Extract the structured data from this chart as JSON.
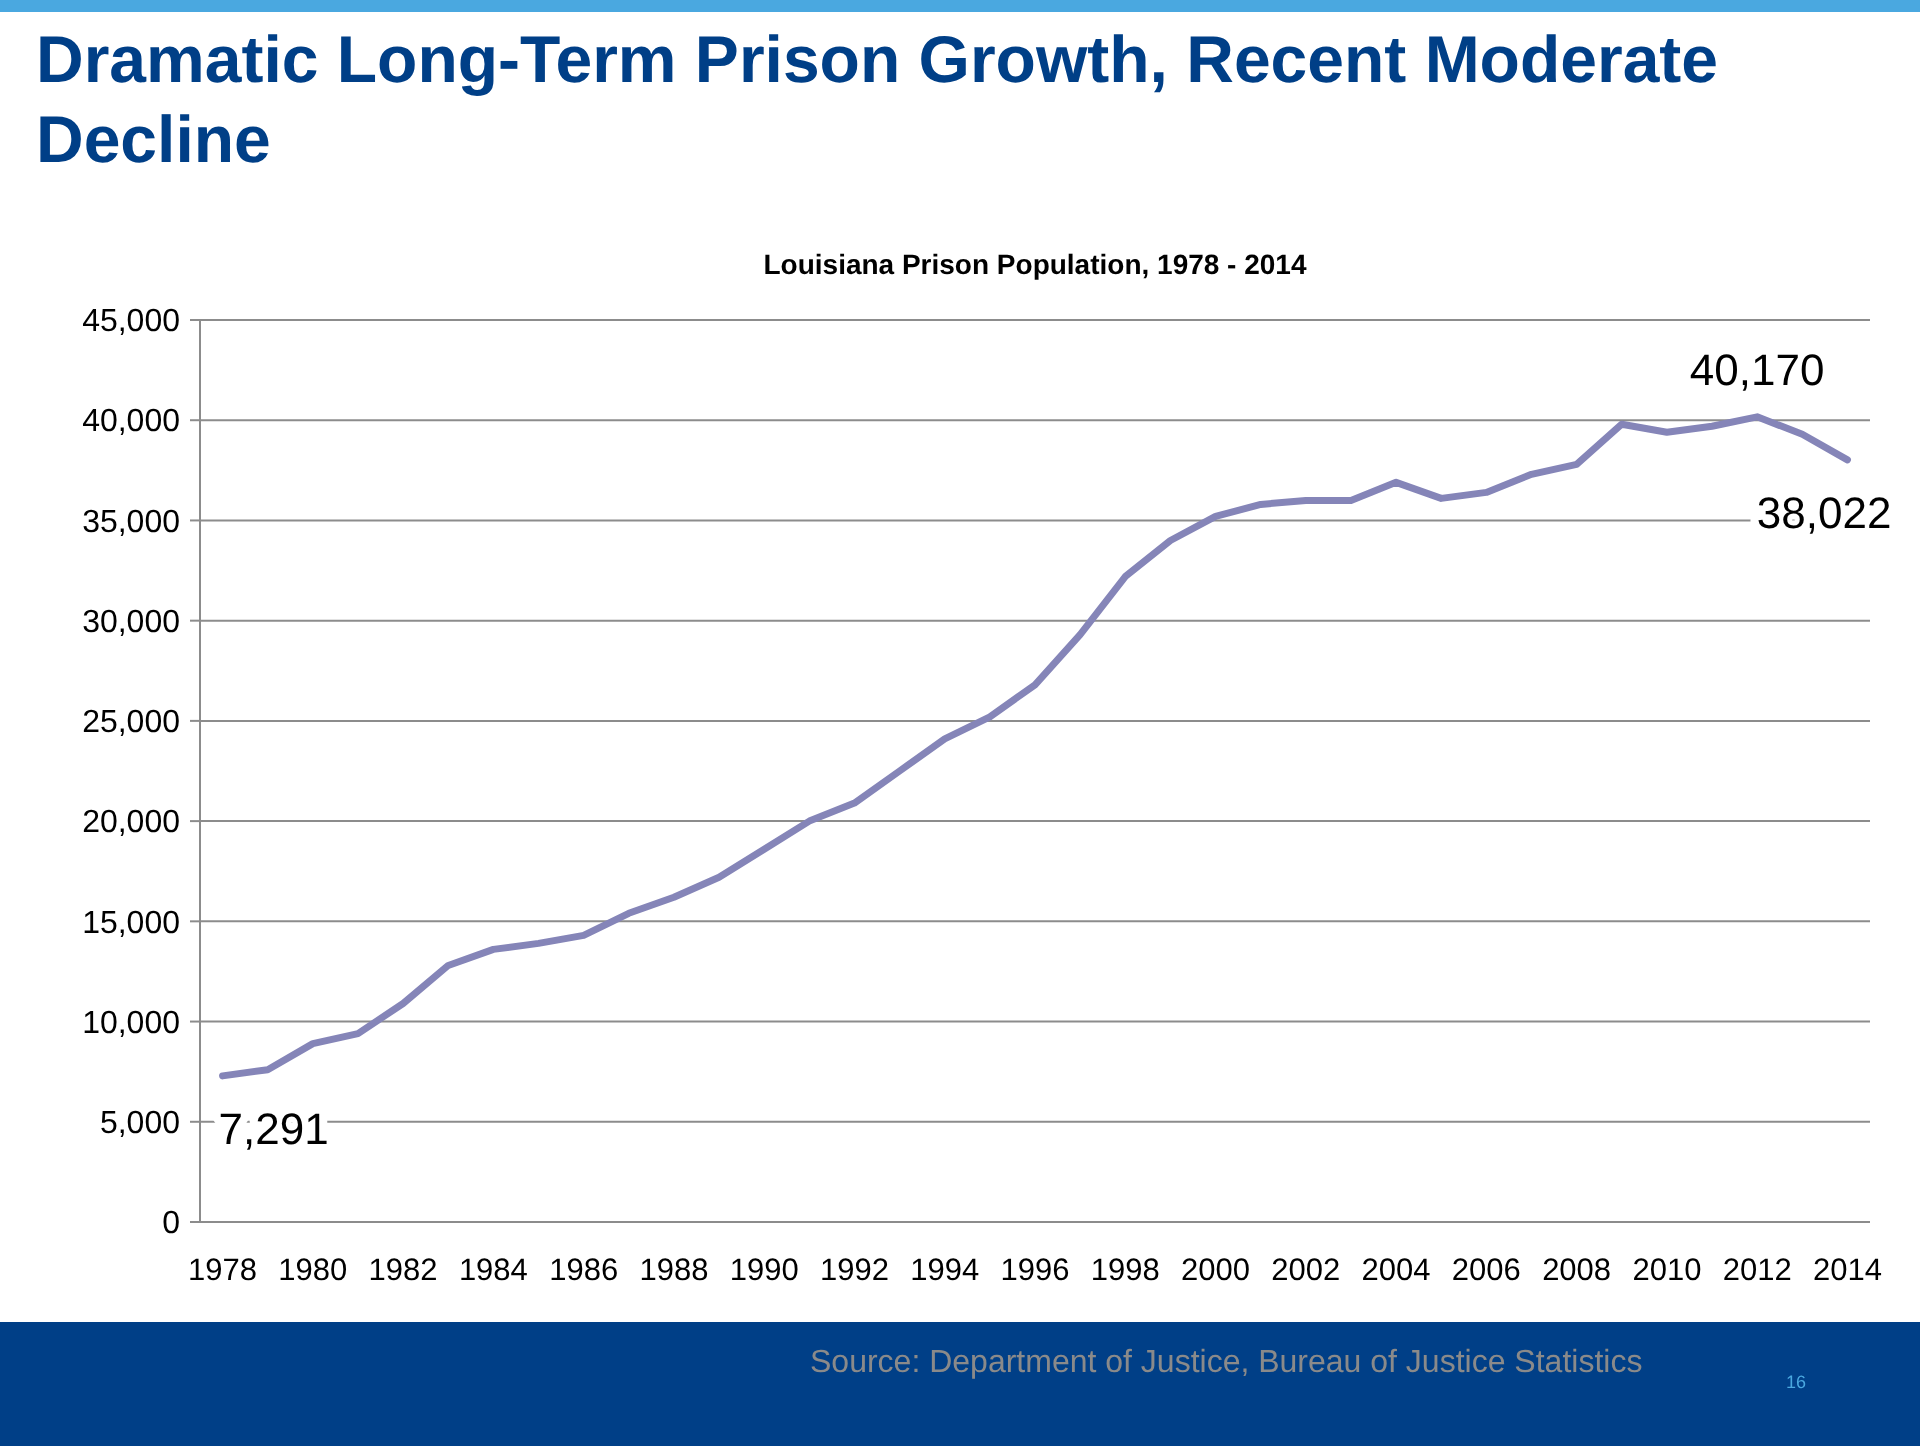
{
  "chart_data": {
    "type": "line",
    "title": "Dramatic Long-Term Prison Growth, Recent Moderate Decline",
    "subtitle": "Louisiana Prison Population, 1978 - 2014",
    "categories": [
      "1978",
      null,
      "1980",
      null,
      "1982",
      null,
      "1984",
      null,
      "1986",
      null,
      "1988",
      null,
      "1990",
      null,
      "1992",
      null,
      "1994",
      null,
      "1996",
      null,
      "1998",
      null,
      "2000",
      null,
      "2002",
      null,
      "2004",
      null,
      "2006",
      null,
      "2008",
      null,
      "2010",
      null,
      "2012",
      null,
      "2014"
    ],
    "series": [
      {
        "color": "#8585b8",
        "values": [
          7291,
          7600,
          8900,
          9400,
          10900,
          12800,
          13600,
          13900,
          14300,
          15400,
          16200,
          17200,
          18600,
          20000,
          20900,
          22500,
          24100,
          25200,
          26800,
          29300,
          32200,
          34000,
          35200,
          35800,
          36000,
          36000,
          36900,
          36100,
          36400,
          37300,
          37800,
          39800,
          39400,
          39700,
          40170,
          39300,
          38022
        ]
      }
    ],
    "ylim": [
      0,
      45000
    ],
    "yticks": [
      {
        "value": 0,
        "label": "0"
      },
      {
        "value": 5000,
        "label": "5,000"
      },
      {
        "value": 10000,
        "label": "10,000"
      },
      {
        "value": 15000,
        "label": "15,000"
      },
      {
        "value": 20000,
        "label": "20,000"
      },
      {
        "value": 25000,
        "label": "25,000"
      },
      {
        "value": 30000,
        "label": "30,000"
      },
      {
        "value": 35000,
        "label": "35,000"
      },
      {
        "value": 40000,
        "label": "40,000"
      },
      {
        "value": 45000,
        "label": "45,000"
      }
    ],
    "grid": "y",
    "marker": "none",
    "line_style": "solid",
    "annotations": [
      {
        "text": "7,291",
        "x": "1978",
        "y": 7291
      },
      {
        "text": "40,170",
        "x": "2012",
        "y": 40170
      },
      {
        "text": "38,022",
        "x": "2014",
        "y": 38022
      },
      "Source: Department of Justice, Bureau of Justice Statistics",
      "16"
    ]
  }
}
